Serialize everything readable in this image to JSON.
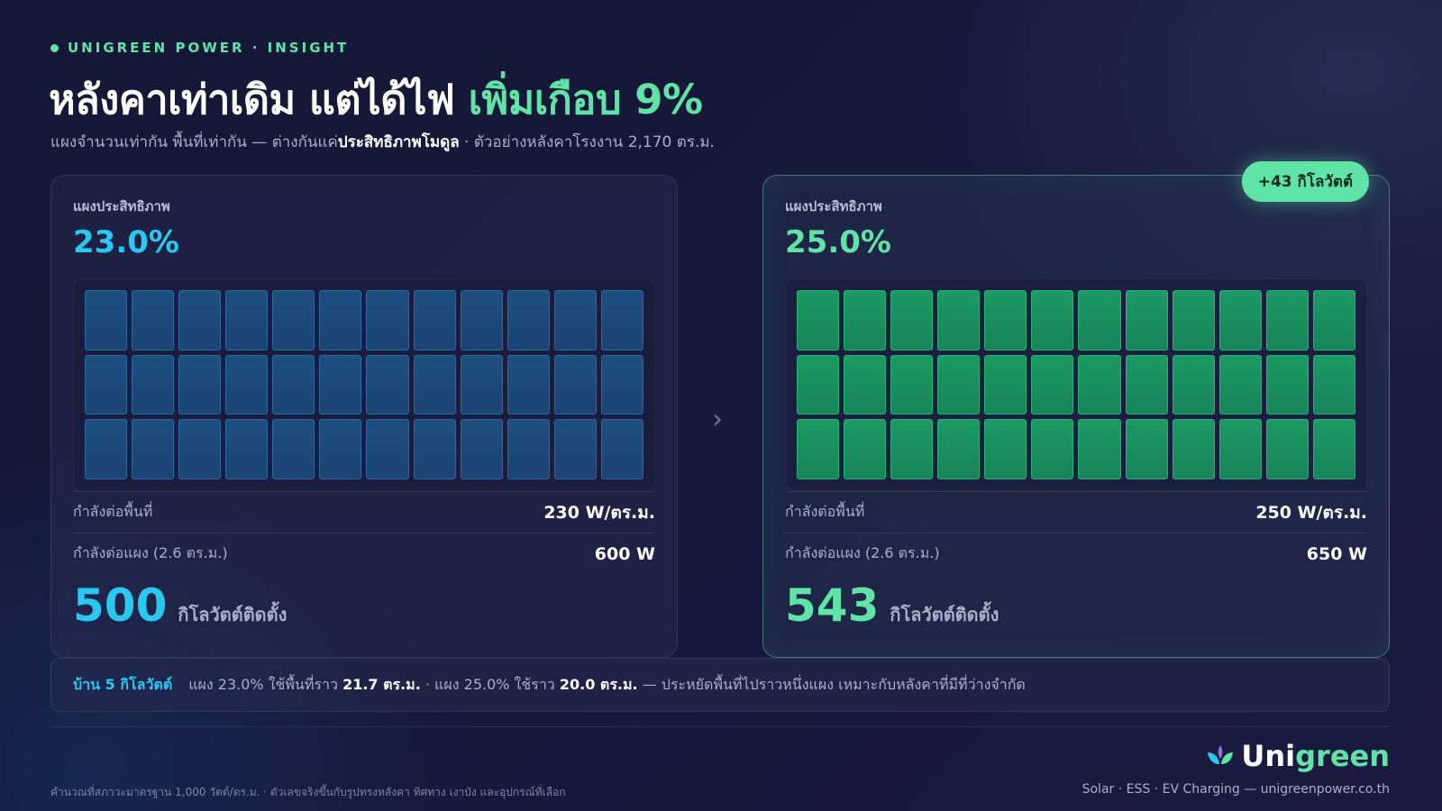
{
  "eyebrow": "UNIGREEN POWER · INSIGHT",
  "headline": {
    "main": "หลังคาเท่าเดิม แต่ได้ไฟ ",
    "highlight": "เพิ่มเกือบ 9%"
  },
  "subline": {
    "prefix": "แผงจำนวนเท่ากัน พื้นที่เท่ากัน — ต่างกันแค่",
    "bold": "ประสิทธิภาพโมดูล",
    "suffix": " · ตัวอย่างหลังคาโรงงาน 2,170 ตร.ม."
  },
  "cards": {
    "left": {
      "label": "แผงประสิทธิภาพ",
      "efficiency": "23.0%",
      "panel_grid": {
        "rows": 3,
        "cols": 12
      },
      "stats": [
        {
          "key": "กำลังต่อพื้นที่",
          "value": "230 W/ตร.ม."
        },
        {
          "key": "กำลังต่อแผง (2.6 ตร.ม.)",
          "value": "600 W"
        }
      ],
      "total": "500",
      "total_unit": "กิโลวัตต์ติดตั้ง",
      "color": "#28c8f0"
    },
    "right": {
      "badge": "+43 กิโลวัตต์",
      "label": "แผงประสิทธิภาพ",
      "efficiency": "25.0%",
      "panel_grid": {
        "rows": 3,
        "cols": 12
      },
      "stats": [
        {
          "key": "กำลังต่อพื้นที่",
          "value": "250 W/ตร.ม."
        },
        {
          "key": "กำลังต่อแผง (2.6 ตร.ม.)",
          "value": "650 W"
        }
      ],
      "total": "543",
      "total_unit": "กิโลวัตต์ติดตั้ง",
      "color": "#5fe3a6"
    }
  },
  "chevron_icon": "chevron-right-icon",
  "note": {
    "tag": "บ้าน 5 กิโลวัตต์",
    "t1": "แผง 23.0% ใช้พื้นที่ราว ",
    "b1": "21.7 ตร.ม.",
    "t2": " · แผง 25.0% ใช้ราว ",
    "b2": "20.0 ตร.ม.",
    "t3": " — ประหยัดพื้นที่ไปราวหนึ่งแผง เหมาะกับหลังคาที่มีที่ว่างจำกัด"
  },
  "brand": {
    "logo_icon": "leaf-logo-icon",
    "part1": "Uni",
    "part2": "green"
  },
  "footnote": "คำนวณที่สภาวะมาตรฐาน 1,000 วัตต์/ตร.ม. · ตัวเลขจริงขึ้นกับรูปทรงหลังคา ทิศทาง เงาบัง และอุปกรณ์ที่เลือก",
  "tagline": "Solar · ESS · EV Charging — unigreenpower.co.th"
}
